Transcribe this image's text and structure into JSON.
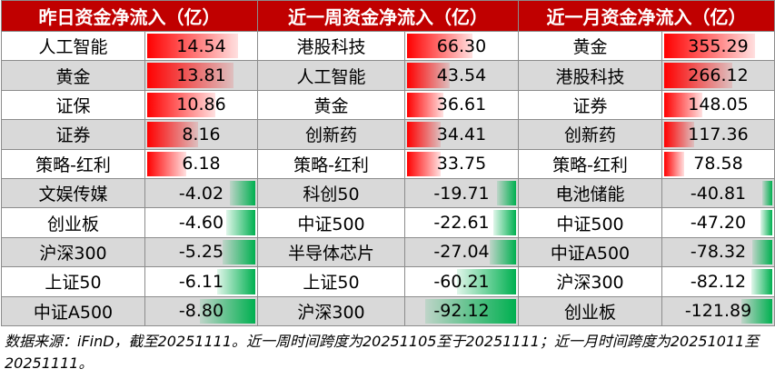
{
  "headers": [
    "昨日资金净流入（亿）",
    "近一周资金净流入（亿）",
    "近一月资金净流入（亿）"
  ],
  "colors": {
    "header_bg": "#c00000",
    "positive_bar": "#ff0000",
    "negative_bar": "#00b050",
    "alt_row": "#d9d9d9"
  },
  "tables": [
    {
      "period": "yesterday",
      "rows": [
        {
          "name": "人工智能",
          "value": "14.54",
          "num": 14.54
        },
        {
          "name": "黄金",
          "value": "13.81",
          "num": 13.81
        },
        {
          "name": "证保",
          "value": "10.86",
          "num": 10.86
        },
        {
          "name": "证券",
          "value": "8.16",
          "num": 8.16
        },
        {
          "name": "策略-红利",
          "value": "6.18",
          "num": 6.18
        },
        {
          "name": "文娱传媒",
          "value": "-4.02",
          "num": -4.02
        },
        {
          "name": "创业板",
          "value": "-4.60",
          "num": -4.6
        },
        {
          "name": "沪深300",
          "value": "-5.25",
          "num": -5.25
        },
        {
          "name": "上证50",
          "value": "-6.11",
          "num": -6.11
        },
        {
          "name": "中证A500",
          "value": "-8.80",
          "num": -8.8
        }
      ]
    },
    {
      "period": "week",
      "rows": [
        {
          "name": "港股科技",
          "value": "66.30",
          "num": 66.3
        },
        {
          "name": "人工智能",
          "value": "43.54",
          "num": 43.54
        },
        {
          "name": "黄金",
          "value": "36.61",
          "num": 36.61
        },
        {
          "name": "创新药",
          "value": "34.41",
          "num": 34.41
        },
        {
          "name": "策略-红利",
          "value": "33.75",
          "num": 33.75
        },
        {
          "name": "科创50",
          "value": "-19.71",
          "num": -19.71
        },
        {
          "name": "中证500",
          "value": "-22.61",
          "num": -22.61
        },
        {
          "name": "半导体芯片",
          "value": "-27.04",
          "num": -27.04
        },
        {
          "name": "上证50",
          "value": "-60.21",
          "num": -60.21
        },
        {
          "name": "沪深300",
          "value": "-92.12",
          "num": -92.12
        }
      ]
    },
    {
      "period": "month",
      "rows": [
        {
          "name": "黄金",
          "value": "355.29",
          "num": 355.29
        },
        {
          "name": "港股科技",
          "value": "266.12",
          "num": 266.12
        },
        {
          "name": "证券",
          "value": "148.05",
          "num": 148.05
        },
        {
          "name": "创新药",
          "value": "117.36",
          "num": 117.36
        },
        {
          "name": "策略-红利",
          "value": "78.58",
          "num": 78.58
        },
        {
          "name": "电池储能",
          "value": "-40.81",
          "num": -40.81
        },
        {
          "name": "中证500",
          "value": "-47.20",
          "num": -47.2
        },
        {
          "name": "中证A500",
          "value": "-78.32",
          "num": -78.32
        },
        {
          "name": "沪深300",
          "value": "-82.12",
          "num": -82.12
        },
        {
          "name": "创业板",
          "value": "-121.89",
          "num": -121.89
        }
      ]
    }
  ],
  "footnote": "数据来源：iFinD，截至20251111。近一周时间跨度为20251105至于20251111；近一月时间跨度为20251011至20251111。"
}
